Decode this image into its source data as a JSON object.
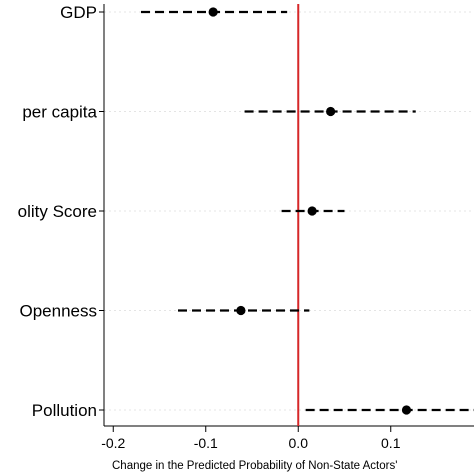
{
  "chart_data": {
    "type": "scatter",
    "subtype": "coefficient-plot-with-confidence-intervals",
    "categories": [
      "GDP",
      "per capita",
      "olity Score",
      "Openness",
      "Pollution"
    ],
    "estimates": [
      -0.092,
      0.035,
      0.015,
      -0.062,
      0.117
    ],
    "ci_lower": [
      -0.17,
      -0.058,
      -0.018,
      -0.13,
      0.008
    ],
    "ci_upper": [
      -0.012,
      0.127,
      0.05,
      0.012,
      0.19
    ],
    "xlabel": "Change in the Predicted Probability of Non-State Actors'",
    "ylabel": "",
    "title": "",
    "x_ticks": [
      -0.2,
      -0.1,
      0.0,
      0.1
    ],
    "x_tick_labels": [
      "-0.2",
      "-0.1",
      "0.0",
      "0.1"
    ],
    "xlim": [
      -0.21,
      0.19
    ],
    "reference_line": 0,
    "grid": "horizontal dashed light gray",
    "colors": {
      "points": "#000000",
      "ci": "#000000",
      "reference_line": "#d62728",
      "grid": "#dcdcdc",
      "axis": "#000000"
    }
  }
}
